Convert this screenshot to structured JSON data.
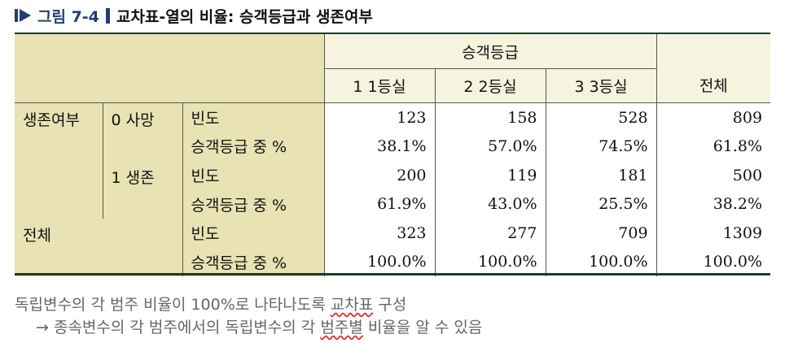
{
  "caption": {
    "figure_label": "그림 7-4",
    "title": "교차표-열의 비율: 승객등급과 생존여부"
  },
  "table": {
    "group_header": "승객등급",
    "col_headers": [
      "1 1등실",
      "2 2등실",
      "3 3등실"
    ],
    "total_header": "전체",
    "row_var": "생존여부",
    "total_label": "전체",
    "count_label": "빈도",
    "pct_label": "승객등급 중 %",
    "groups": [
      {
        "label": "0 사망",
        "counts": [
          "123",
          "158",
          "528",
          "809"
        ],
        "pcts": [
          "38.1%",
          "57.0%",
          "74.5%",
          "61.8%"
        ]
      },
      {
        "label": "1 생존",
        "counts": [
          "200",
          "119",
          "181",
          "500"
        ],
        "pcts": [
          "61.9%",
          "43.0%",
          "25.5%",
          "38.2%"
        ]
      }
    ],
    "total": {
      "counts": [
        "323",
        "277",
        "709",
        "1309"
      ],
      "pcts": [
        "100.0%",
        "100.0%",
        "100.0%",
        "100.0%"
      ]
    }
  },
  "notes": {
    "line1_a": "독립변수의 각 범주 비율이 100%로 나타나도록 ",
    "line1_b": "교차표",
    "line1_c": " 구성",
    "line2_a": "→ 종속변수의 각 범주에서의 독립변수의 각 ",
    "line2_b": "범주별",
    "line2_c": " 비율을 알 수 있음"
  },
  "colors": {
    "accent": "#1f3f73",
    "shade": "#e8e2b4",
    "header": "#f6f3df"
  },
  "icons": [
    "triangle-arrow-icon"
  ]
}
